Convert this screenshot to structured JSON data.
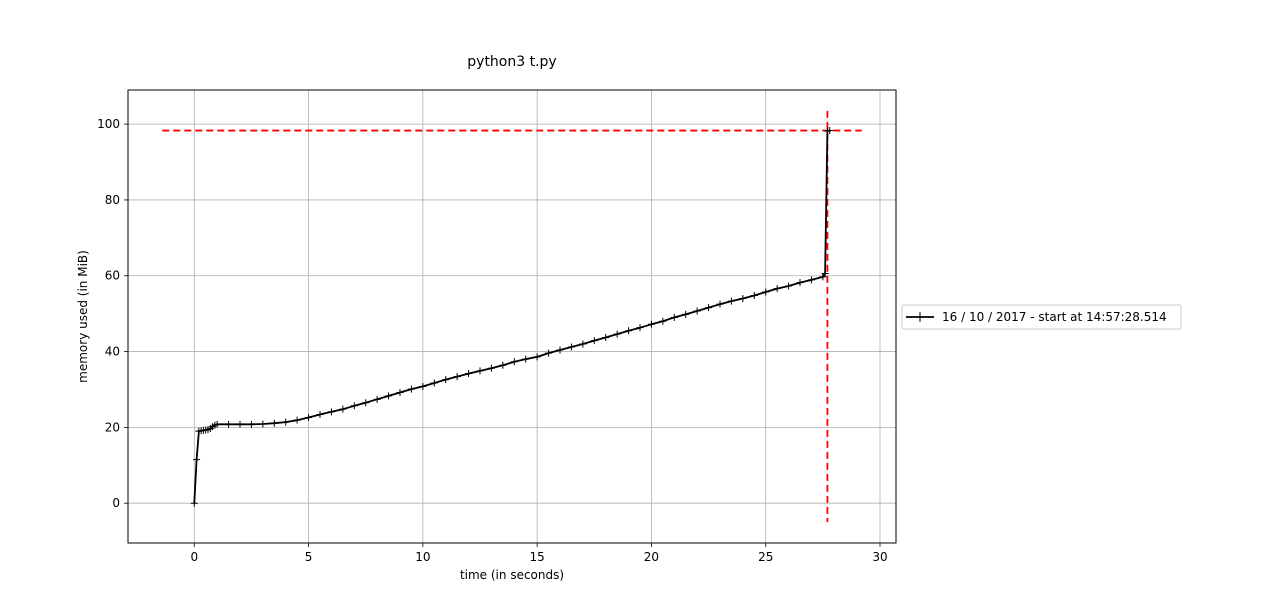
{
  "chart_data": {
    "type": "line",
    "title": "python3 t.py",
    "xlabel": "time (in seconds)",
    "ylabel": "memory used (in MiB)",
    "xlim": [
      -2.9,
      30.7
    ],
    "ylim": [
      -10.5,
      109
    ],
    "xticks": [
      0,
      5,
      10,
      15,
      20,
      25,
      30
    ],
    "yticks": [
      0,
      20,
      40,
      60,
      80,
      100
    ],
    "grid": true,
    "legend_position": "outside right",
    "series": [
      {
        "name": "16 / 10 / 2017 - start at 14:57:28.514",
        "color": "#000000",
        "marker": "plus",
        "x": [
          0,
          0.1,
          0.2,
          0.3,
          0.4,
          0.5,
          0.6,
          0.7,
          0.8,
          0.9,
          1.0,
          1.5,
          2.0,
          2.5,
          3.0,
          3.5,
          4.0,
          4.5,
          5.0,
          5.5,
          6.0,
          6.5,
          7.0,
          7.5,
          8.0,
          8.5,
          9.0,
          9.5,
          10.0,
          10.5,
          11.0,
          11.5,
          12.0,
          12.5,
          13.0,
          13.5,
          14.0,
          14.5,
          15.0,
          15.5,
          16.0,
          16.5,
          17.0,
          17.5,
          18.0,
          18.5,
          19.0,
          19.5,
          20.0,
          20.5,
          21.0,
          21.5,
          22.0,
          22.5,
          23.0,
          23.5,
          24.0,
          24.5,
          25.0,
          25.5,
          26.0,
          26.5,
          27.0,
          27.5,
          27.6,
          27.7,
          27.8
        ],
        "y": [
          0,
          11.5,
          19.0,
          19.1,
          19.2,
          19.3,
          19.4,
          19.7,
          20.2,
          20.6,
          20.8,
          20.8,
          20.8,
          20.8,
          20.9,
          21.1,
          21.4,
          21.9,
          22.6,
          23.4,
          24.1,
          24.8,
          25.7,
          26.5,
          27.4,
          28.3,
          29.2,
          30.1,
          30.8,
          31.7,
          32.6,
          33.4,
          34.2,
          34.9,
          35.6,
          36.4,
          37.3,
          38.0,
          38.6,
          39.6,
          40.4,
          41.2,
          42.0,
          42.9,
          43.7,
          44.6,
          45.5,
          46.3,
          47.2,
          48.0,
          49.0,
          49.8,
          50.7,
          51.6,
          52.5,
          53.3,
          54.0,
          54.8,
          55.7,
          56.6,
          57.3,
          58.2,
          58.9,
          59.7,
          60.6,
          98.2,
          98.3
        ]
      }
    ],
    "reference_lines": [
      {
        "orientation": "horizontal",
        "value": 98.3,
        "color": "#ff0000",
        "style": "dashed"
      },
      {
        "orientation": "vertical",
        "value": 27.7,
        "color": "#ff0000",
        "style": "dashed"
      }
    ]
  }
}
